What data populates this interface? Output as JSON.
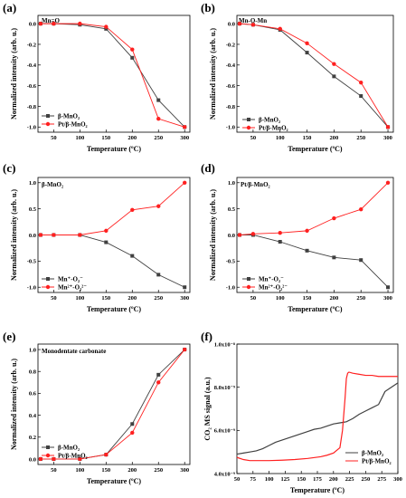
{
  "chart_data": [
    {
      "id": "a",
      "type": "line",
      "panel_label": "(a)",
      "title": "Mn=O",
      "xlabel": "Temperature (ºC)",
      "ylabel": "Normalized intensity (arb. u.)",
      "xlim": [
        20,
        310
      ],
      "ylim": [
        -1.05,
        0.08
      ],
      "xticks": [
        0,
        50,
        100,
        150,
        200,
        250,
        300
      ],
      "yticks": [
        0.0,
        -0.2,
        -0.4,
        -0.6,
        -0.8,
        -1.0
      ],
      "legend_position": "bottom-left",
      "x": [
        25,
        50,
        100,
        150,
        200,
        250,
        300
      ],
      "series": [
        {
          "name": "β-MnO₂",
          "color": "#404040",
          "marker": "square",
          "values": [
            0.0,
            0.0,
            -0.01,
            -0.05,
            -0.33,
            -0.74,
            -1.0
          ]
        },
        {
          "name": "Pt/β-MnO₂",
          "color": "#ff2020",
          "marker": "circle",
          "values": [
            0.0,
            0.0,
            0.0,
            -0.03,
            -0.25,
            -0.92,
            -1.0
          ]
        }
      ]
    },
    {
      "id": "b",
      "type": "line",
      "panel_label": "(b)",
      "title": "Mn-O-Mn",
      "xlabel": "Temperature (ºC)",
      "ylabel": "Normalized intensity (arb. u.)",
      "xlim": [
        20,
        310
      ],
      "ylim": [
        -1.05,
        0.08
      ],
      "xticks": [
        0,
        50,
        100,
        150,
        200,
        250,
        300
      ],
      "yticks": [
        0.0,
        -0.2,
        -0.4,
        -0.6,
        -0.8,
        -1.0
      ],
      "legend_position": "bottom-left",
      "x": [
        25,
        50,
        100,
        150,
        200,
        250,
        300
      ],
      "series": [
        {
          "name": "β-MnO₂",
          "color": "#404040",
          "marker": "square",
          "values": [
            0.0,
            -0.01,
            -0.06,
            -0.28,
            -0.51,
            -0.7,
            -1.0
          ]
        },
        {
          "name": "Pt/β-MnO₂",
          "color": "#ff2020",
          "marker": "circle",
          "values": [
            0.0,
            -0.01,
            -0.05,
            -0.19,
            -0.39,
            -0.57,
            -1.0
          ]
        }
      ]
    },
    {
      "id": "c",
      "type": "line",
      "panel_label": "(c)",
      "title": "β-MnO₂",
      "xlabel": "Temperature (ºC)",
      "ylabel": "Normalized intensity (arb. u.)",
      "xlim": [
        20,
        310
      ],
      "ylim": [
        -1.1,
        1.1
      ],
      "xticks": [
        0,
        50,
        100,
        150,
        200,
        250,
        300
      ],
      "yticks": [
        1.0,
        0.5,
        0.0,
        -0.5,
        -1.0
      ],
      "legend_position": "bottom-left",
      "x": [
        25,
        50,
        100,
        150,
        200,
        250,
        300
      ],
      "series": [
        {
          "name": "Mn⁺-O₂⁻",
          "color": "#404040",
          "marker": "square",
          "values": [
            0.0,
            0.0,
            0.0,
            -0.14,
            -0.4,
            -0.76,
            -1.0
          ]
        },
        {
          "name": "Mn²⁺-O₂²⁻",
          "color": "#ff2020",
          "marker": "circle",
          "values": [
            0.0,
            0.0,
            0.0,
            0.08,
            0.48,
            0.55,
            1.0
          ]
        }
      ]
    },
    {
      "id": "d",
      "type": "line",
      "panel_label": "(d)",
      "title": "Pt/β-MnO₂",
      "xlabel": "Temperature (ºC)",
      "ylabel": "Normalized intensity (arb. u.)",
      "xlim": [
        20,
        310
      ],
      "ylim": [
        -1.1,
        1.1
      ],
      "xticks": [
        0,
        50,
        100,
        150,
        200,
        250,
        300
      ],
      "yticks": [
        1.0,
        0.5,
        0.0,
        -0.5,
        -1.0
      ],
      "legend_position": "bottom-left",
      "x": [
        25,
        50,
        100,
        150,
        200,
        250,
        300
      ],
      "series": [
        {
          "name": "Mn⁺-O₂⁻",
          "color": "#404040",
          "marker": "square",
          "values": [
            0.0,
            0.0,
            -0.13,
            -0.3,
            -0.43,
            -0.48,
            -1.0
          ]
        },
        {
          "name": "Mn²⁺-O₂²⁻",
          "color": "#ff2020",
          "marker": "circle",
          "values": [
            0.0,
            0.02,
            0.04,
            0.08,
            0.32,
            0.49,
            1.0
          ]
        }
      ]
    },
    {
      "id": "e",
      "type": "line",
      "panel_label": "(e)",
      "title": "Monodentate carbonate",
      "xlabel": "Temperature (ºC)",
      "ylabel": "Normalized intensity (arb. u.)",
      "xlim": [
        20,
        310
      ],
      "ylim": [
        -0.05,
        1.05
      ],
      "xticks": [
        0,
        50,
        100,
        150,
        200,
        250,
        300
      ],
      "yticks": [
        0.0,
        0.2,
        0.4,
        0.6,
        0.8,
        1.0
      ],
      "legend_position": "bottom-left",
      "x": [
        25,
        50,
        100,
        150,
        200,
        250,
        300
      ],
      "series": [
        {
          "name": "β-MnO₂",
          "color": "#404040",
          "marker": "square",
          "values": [
            0.0,
            0.0,
            0.0,
            0.04,
            0.32,
            0.77,
            1.0
          ]
        },
        {
          "name": "Pt/β-MnO₂",
          "color": "#ff2020",
          "marker": "circle",
          "values": [
            0.0,
            0.0,
            0.0,
            0.04,
            0.24,
            0.7,
            1.0
          ]
        }
      ]
    },
    {
      "id": "f",
      "type": "line",
      "panel_label": "(f)",
      "title": "",
      "xlabel": "Temperature (ºC)",
      "ylabel": "CO₂ MS signal (a.u.)",
      "xlim": [
        50,
        300
      ],
      "ylim": [
        4e-09,
        1e-08
      ],
      "xticks": [
        50,
        75,
        100,
        125,
        150,
        175,
        200,
        225,
        250,
        275,
        300
      ],
      "yticks": [
        4e-09,
        6e-09,
        8e-09,
        1e-08
      ],
      "ytick_labels": [
        "4.0x10⁻⁹",
        "6.0x10⁻⁹",
        "8.0x10⁻⁹",
        "1.0x10⁻⁸"
      ],
      "legend_position": "bottom-right",
      "series": [
        {
          "name": "β-MnO₂",
          "color": "#404040",
          "x": [
            50,
            60,
            70,
            80,
            90,
            100,
            110,
            120,
            130,
            140,
            150,
            160,
            170,
            180,
            190,
            200,
            210,
            220,
            230,
            240,
            250,
            260,
            270,
            275,
            280,
            290,
            300
          ],
          "values": [
            4.9e-09,
            4.95e-09,
            5e-09,
            5.05e-09,
            5.15e-09,
            5.3e-09,
            5.45e-09,
            5.55e-09,
            5.65e-09,
            5.75e-09,
            5.85e-09,
            5.95e-09,
            6.05e-09,
            6.1e-09,
            6.2e-09,
            6.3e-09,
            6.35e-09,
            6.4e-09,
            6.55e-09,
            6.75e-09,
            6.9e-09,
            7.05e-09,
            7.2e-09,
            7.5e-09,
            7.8e-09,
            8e-09,
            8.2e-09
          ]
        },
        {
          "name": "Pt/β-MnO₂",
          "color": "#ff2020",
          "x": [
            50,
            60,
            70,
            80,
            90,
            100,
            120,
            140,
            160,
            180,
            190,
            200,
            210,
            214,
            218,
            220,
            222,
            224,
            230,
            240,
            250,
            260,
            270,
            280,
            290,
            300
          ],
          "values": [
            4.75e-09,
            4.65e-09,
            4.6e-09,
            4.6e-09,
            4.6e-09,
            4.6e-09,
            4.62e-09,
            4.65e-09,
            4.7e-09,
            4.78e-09,
            4.85e-09,
            4.95e-09,
            5.2e-09,
            6e-09,
            7.5e-09,
            8.4e-09,
            8.65e-09,
            8.7e-09,
            8.65e-09,
            8.6e-09,
            8.55e-09,
            8.55e-09,
            8.5e-09,
            8.5e-09,
            8.5e-09,
            8.5e-09
          ]
        }
      ]
    }
  ]
}
